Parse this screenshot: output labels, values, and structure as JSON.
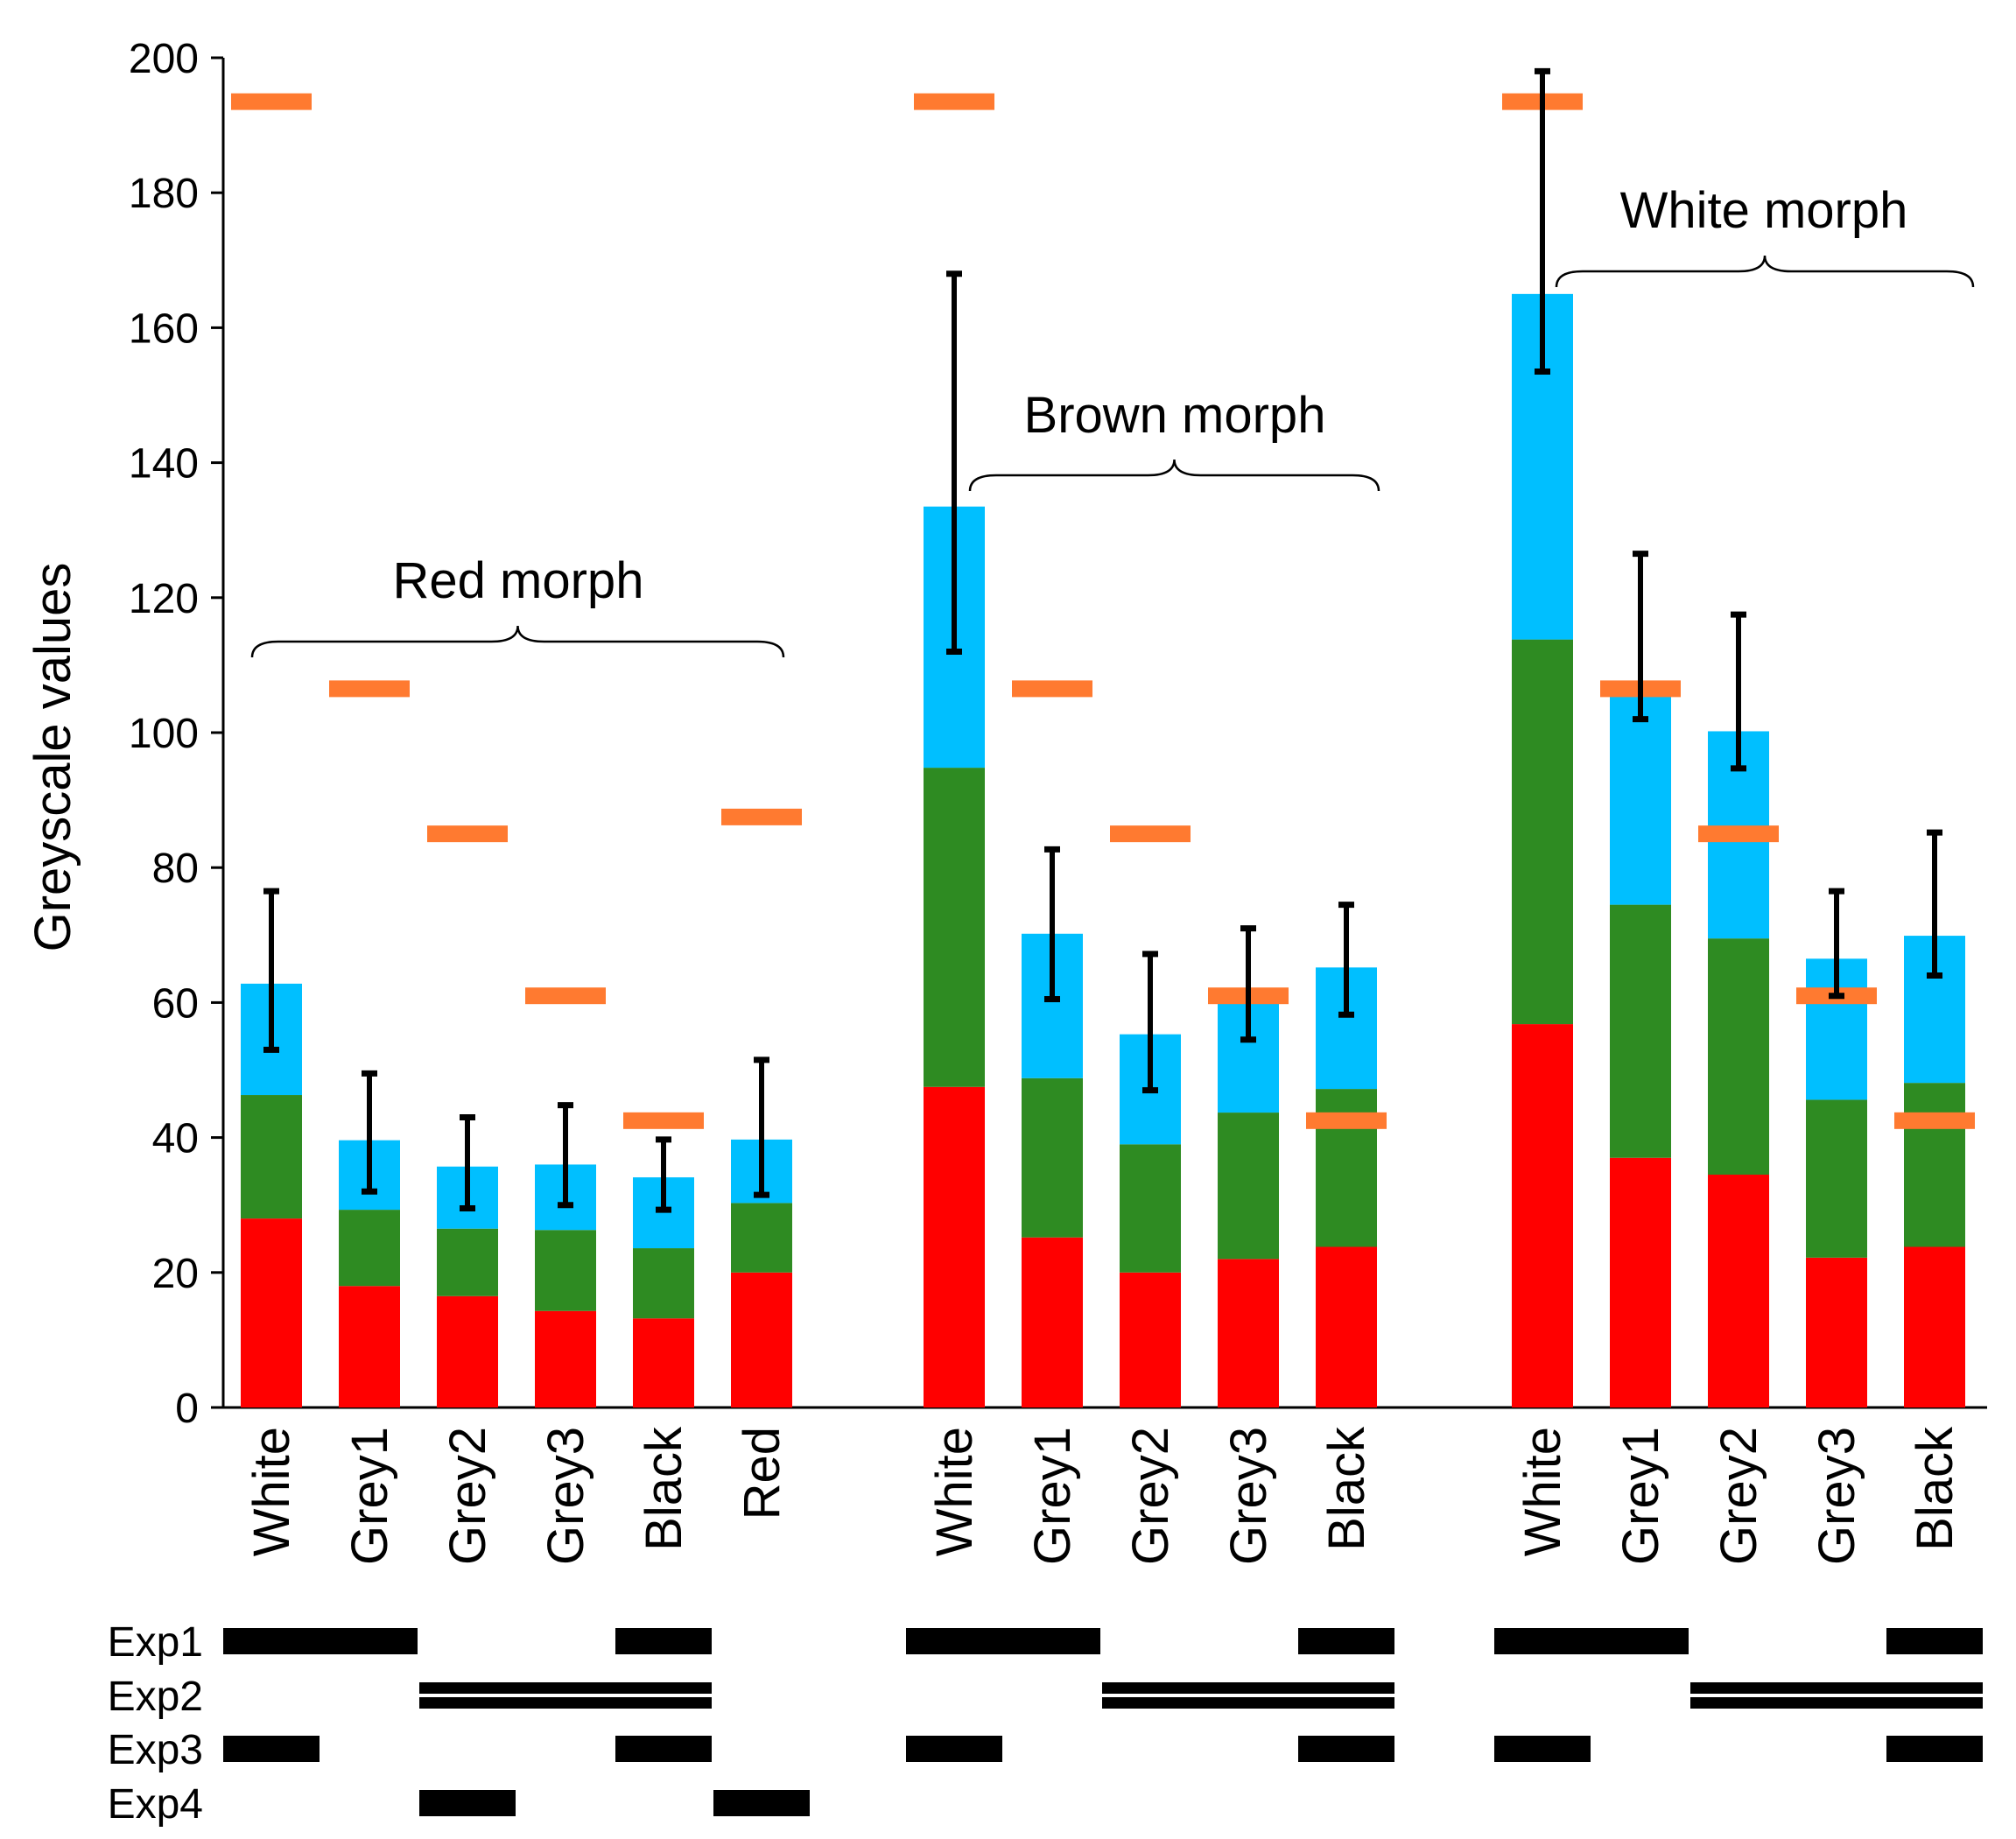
{
  "chart_data": {
    "type": "bar",
    "stacked": true,
    "ylabel": "Greyscale values",
    "ylim": [
      0,
      200
    ],
    "yticks": [
      0,
      20,
      40,
      60,
      80,
      100,
      120,
      140,
      160,
      180,
      200
    ],
    "colors": {
      "red": "#ff0000",
      "green": "#2e8b22",
      "blue": "#00bfff",
      "marker": "#ff7a30",
      "axis": "#000000"
    },
    "groups": [
      {
        "label": "Red morph",
        "categories": [
          "White",
          "Grey1",
          "Grey2",
          "Grey3",
          "Black",
          "Red"
        ],
        "red": [
          28,
          18,
          16.5,
          14.3,
          13.2,
          20
        ],
        "green": [
          18.3,
          11.3,
          10,
          12,
          10.4,
          10.3
        ],
        "blue": [
          16.5,
          10.3,
          9.2,
          9.7,
          10.5,
          9.4
        ],
        "err_low": [
          53,
          32,
          29.5,
          30,
          29.3,
          31.5
        ],
        "err_high": [
          76.5,
          49.5,
          43,
          44.8,
          39.7,
          51.5
        ],
        "marker": [
          193.5,
          106.5,
          85,
          61,
          42.5,
          87.5
        ]
      },
      {
        "label": "Brown morph",
        "categories": [
          "White",
          "Grey1",
          "Grey2",
          "Grey3",
          "Black"
        ],
        "red": [
          47.5,
          25.2,
          20,
          22,
          23.8
        ],
        "green": [
          47.3,
          23.6,
          19,
          21.7,
          23.4
        ],
        "blue": [
          38.7,
          21.4,
          16.3,
          16.8,
          18
        ],
        "err_low": [
          112,
          60.5,
          47,
          54.5,
          58.2
        ],
        "err_high": [
          168,
          82.7,
          67.2,
          71,
          74.5
        ],
        "marker": [
          193.5,
          106.5,
          85,
          61,
          42.5
        ]
      },
      {
        "label": "White morph",
        "categories": [
          "White",
          "Grey1",
          "Grey2",
          "Grey3",
          "Black"
        ],
        "red": [
          56.8,
          37,
          34.5,
          22.2,
          23.8
        ],
        "green": [
          57,
          37.5,
          35,
          23.4,
          24.3
        ],
        "blue": [
          51.2,
          31.8,
          30.7,
          20.9,
          21.8
        ],
        "err_low": [
          153.5,
          102,
          94.7,
          61,
          64
        ],
        "err_high": [
          198,
          126.5,
          117.5,
          76.5,
          85.2
        ],
        "marker": [
          193.5,
          106.5,
          85,
          61,
          42.5
        ]
      }
    ],
    "experiments": [
      {
        "label": "Exp1",
        "segments": [
          {
            "group": 0,
            "from": 0,
            "to": 1
          },
          {
            "group": 0,
            "from": 4,
            "to": 4
          },
          {
            "group": 1,
            "from": 0,
            "to": 1
          },
          {
            "group": 1,
            "from": 4,
            "to": 4
          },
          {
            "group": 2,
            "from": 0,
            "to": 1
          },
          {
            "group": 2,
            "from": 4,
            "to": 4
          }
        ]
      },
      {
        "label": "Exp2",
        "double": true,
        "segments": [
          {
            "group": 0,
            "from": 2,
            "to": 4
          },
          {
            "group": 1,
            "from": 2,
            "to": 4
          },
          {
            "group": 2,
            "from": 2,
            "to": 4
          }
        ]
      },
      {
        "label": "Exp3",
        "segments": [
          {
            "group": 0,
            "from": 0,
            "to": 0
          },
          {
            "group": 0,
            "from": 4,
            "to": 4
          },
          {
            "group": 1,
            "from": 0,
            "to": 0
          },
          {
            "group": 1,
            "from": 4,
            "to": 4
          },
          {
            "group": 2,
            "from": 0,
            "to": 0
          },
          {
            "group": 2,
            "from": 4,
            "to": 4
          }
        ]
      },
      {
        "label": "Exp4",
        "segments": [
          {
            "group": 0,
            "from": 2,
            "to": 2
          },
          {
            "group": 0,
            "from": 5,
            "to": 5
          }
        ]
      }
    ]
  }
}
